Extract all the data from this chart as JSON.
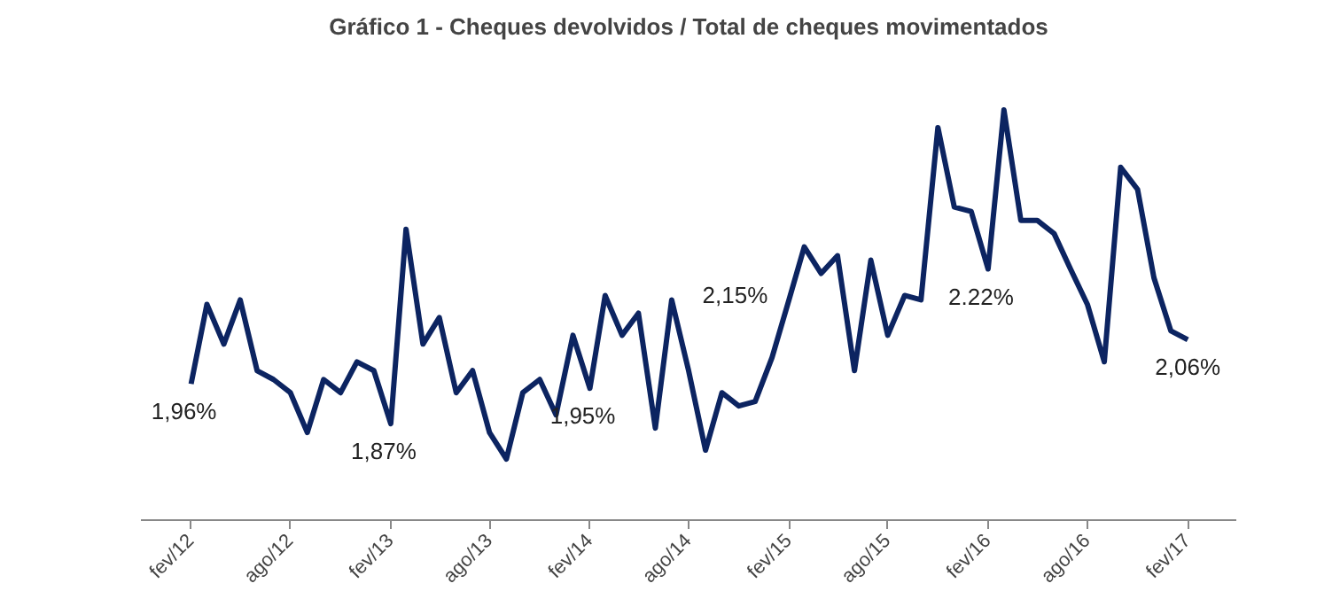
{
  "chart_data": {
    "type": "line",
    "title": "Gráfico 1 - Cheques devolvidos / Total de cheques movimentados",
    "x": [
      "2012-02",
      "2012-03",
      "2012-04",
      "2012-05",
      "2012-06",
      "2012-07",
      "2012-08",
      "2012-09",
      "2012-10",
      "2012-11",
      "2012-12",
      "2013-01",
      "2013-02",
      "2013-03",
      "2013-04",
      "2013-05",
      "2013-06",
      "2013-07",
      "2013-08",
      "2013-09",
      "2013-10",
      "2013-11",
      "2013-12",
      "2014-01",
      "2014-02",
      "2014-03",
      "2014-04",
      "2014-05",
      "2014-06",
      "2014-07",
      "2014-08",
      "2014-09",
      "2014-10",
      "2014-11",
      "2014-12",
      "2015-01",
      "2015-02",
      "2015-03",
      "2015-04",
      "2015-05",
      "2015-06",
      "2015-07",
      "2015-08",
      "2015-09",
      "2015-10",
      "2015-11",
      "2015-12",
      "2016-01",
      "2016-02",
      "2016-03",
      "2016-04",
      "2016-05",
      "2016-06",
      "2016-07",
      "2016-08",
      "2016-09",
      "2016-10",
      "2016-11",
      "2016-12",
      "2017-01",
      "2017-02"
    ],
    "series": [
      {
        "color": "#0c2461",
        "values": [
          1.96,
          2.14,
          2.05,
          2.15,
          1.99,
          1.97,
          1.94,
          1.85,
          1.97,
          1.94,
          2.01,
          1.99,
          1.87,
          2.31,
          2.05,
          2.11,
          1.94,
          1.99,
          1.85,
          1.79,
          1.94,
          1.97,
          1.89,
          2.07,
          1.95,
          2.16,
          2.07,
          2.12,
          1.86,
          2.15,
          1.99,
          1.81,
          1.94,
          1.91,
          1.92,
          2.02,
          2.15,
          2.27,
          2.21,
          2.25,
          1.99,
          2.24,
          2.07,
          2.16,
          2.15,
          2.54,
          2.36,
          2.35,
          2.22,
          2.58,
          2.33,
          2.33,
          2.3,
          2.22,
          2.14,
          2.01,
          2.45,
          2.4,
          2.2,
          2.08,
          2.06
        ],
        "value_labels": [
          "1,96%",
          null,
          null,
          null,
          null,
          null,
          null,
          null,
          null,
          null,
          null,
          null,
          "1,87%",
          null,
          null,
          null,
          null,
          null,
          null,
          null,
          null,
          null,
          null,
          null,
          "1,95%",
          null,
          null,
          null,
          null,
          null,
          null,
          null,
          null,
          null,
          null,
          null,
          "2,15%",
          null,
          null,
          null,
          null,
          null,
          null,
          null,
          null,
          null,
          null,
          null,
          "2.22%",
          null,
          null,
          null,
          null,
          null,
          null,
          null,
          null,
          null,
          null,
          null,
          "2,06%"
        ]
      }
    ],
    "xlim": [
      "2011-11",
      "2017-05"
    ],
    "xticks": [
      {
        "value": "2012-02",
        "label": "fev/12"
      },
      {
        "value": "2012-08",
        "label": "ago/12"
      },
      {
        "value": "2013-02",
        "label": "fev/13"
      },
      {
        "value": "2013-08",
        "label": "ago/13"
      },
      {
        "value": "2014-02",
        "label": "fev/14"
      },
      {
        "value": "2014-08",
        "label": "ago/14"
      },
      {
        "value": "2015-02",
        "label": "fev/15"
      },
      {
        "value": "2015-08",
        "label": "ago/15"
      },
      {
        "value": "2016-02",
        "label": "fev/16"
      },
      {
        "value": "2016-08",
        "label": "ago/16"
      },
      {
        "value": "2017-02",
        "label": "fev/17"
      }
    ],
    "tick_labels": "x",
    "grid": false,
    "marker": "none",
    "line_style": "solid"
  }
}
